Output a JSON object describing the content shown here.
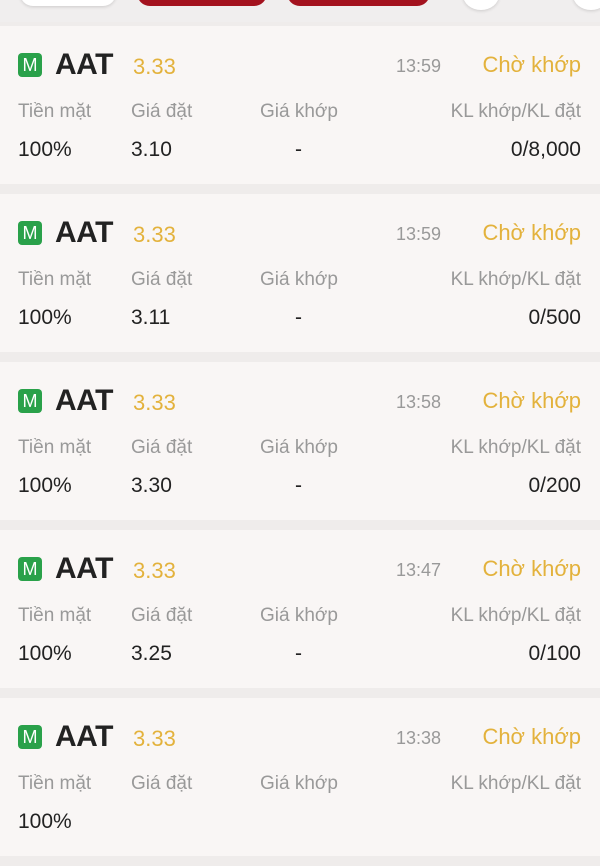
{
  "labels": {
    "cash": "Tiền mặt",
    "order_price": "Giá đặt",
    "match_price": "Giá khớp",
    "volume": "KL khớp/KL đặt"
  },
  "colors": {
    "accent": "#e3b23c",
    "badge": "#2aa14a",
    "primary": "#a3121e"
  },
  "orders": [
    {
      "badge": "M",
      "symbol": "AAT",
      "price": "3.33",
      "time": "13:59",
      "status": "Chờ khớp",
      "cash": "100%",
      "order_price": "3.10",
      "match_price": "-",
      "volume": "0/8,000"
    },
    {
      "badge": "M",
      "symbol": "AAT",
      "price": "3.33",
      "time": "13:59",
      "status": "Chờ khớp",
      "cash": "100%",
      "order_price": "3.11",
      "match_price": "-",
      "volume": "0/500"
    },
    {
      "badge": "M",
      "symbol": "AAT",
      "price": "3.33",
      "time": "13:58",
      "status": "Chờ khớp",
      "cash": "100%",
      "order_price": "3.30",
      "match_price": "-",
      "volume": "0/200"
    },
    {
      "badge": "M",
      "symbol": "AAT",
      "price": "3.33",
      "time": "13:47",
      "status": "Chờ khớp",
      "cash": "100%",
      "order_price": "3.25",
      "match_price": "-",
      "volume": "0/100"
    },
    {
      "badge": "M",
      "symbol": "AAT",
      "price": "3.33",
      "time": "13:38",
      "status": "Chờ khớp",
      "cash": "100%",
      "order_price": "",
      "match_price": "",
      "volume": ""
    }
  ]
}
